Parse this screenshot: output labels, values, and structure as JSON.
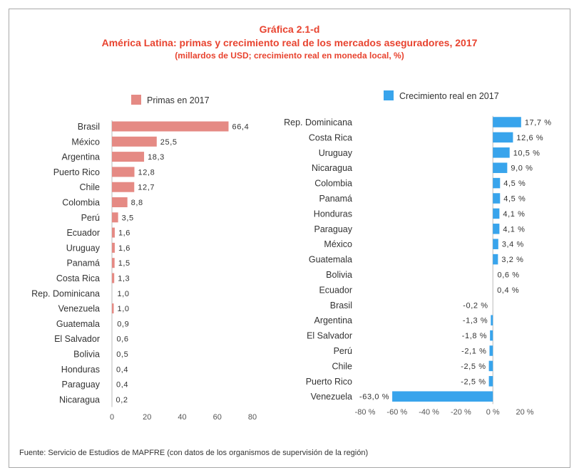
{
  "title": "Gráfica 2.1-d",
  "subtitle": "América Latina: primas y crecimiento real de los mercados aseguradores, 2017",
  "subtitle2": "(millardos de USD; crecimiento real en moneda local, %)",
  "source": "Fuente: Servicio de Estudios de MAPFRE (con datos de los organismos de supervisión de la región)",
  "colors": {
    "primas": "#e58a84",
    "crecimiento": "#38a4ec",
    "text": "#333333",
    "title": "#e8432f"
  },
  "chart_data": [
    {
      "type": "bar",
      "orientation": "horizontal",
      "series": [
        {
          "name": "Primas en 2017"
        }
      ],
      "categories": [
        "Brasil",
        "México",
        "Argentina",
        "Puerto Rico",
        "Chile",
        "Colombia",
        "Perú",
        "Ecuador",
        "Uruguay",
        "Panamá",
        "Costa Rica",
        "Rep. Dominicana",
        "Venezuela",
        "Guatemala",
        "El Salvador",
        "Bolivia",
        "Honduras",
        "Paraguay",
        "Nicaragua"
      ],
      "values": [
        66.4,
        25.5,
        18.3,
        12.8,
        12.7,
        8.8,
        3.5,
        1.6,
        1.6,
        1.5,
        1.3,
        1.0,
        1.0,
        0.9,
        0.6,
        0.5,
        0.4,
        0.4,
        0.2
      ],
      "labels": [
        "66,4",
        "25,5",
        "18,3",
        "12,8",
        "12,7",
        "8,8",
        "3,5",
        "1,6",
        "1,6",
        "1,5",
        "1,3",
        "1,0",
        "1,0",
        "0,9",
        "0,6",
        "0,5",
        "0,4",
        "0,4",
        "0,2"
      ],
      "visible_bar": [
        true,
        true,
        true,
        true,
        true,
        true,
        true,
        true,
        true,
        true,
        true,
        false,
        true,
        false,
        false,
        false,
        false,
        false,
        false
      ],
      "xlim": [
        0,
        80
      ],
      "xticks": [
        0,
        20,
        40,
        60,
        80
      ],
      "xtick_labels": [
        "0",
        "20",
        "40",
        "60",
        "80"
      ],
      "legend_position": "top"
    },
    {
      "type": "bar",
      "orientation": "horizontal",
      "series": [
        {
          "name": "Crecimiento real en 2017"
        }
      ],
      "categories": [
        "Rep. Dominicana",
        "Costa Rica",
        "Uruguay",
        "Nicaragua",
        "Colombia",
        "Panamá",
        "Honduras",
        "Paraguay",
        "México",
        "Guatemala",
        "Bolivia",
        "Ecuador",
        "Brasil",
        "Argentina",
        "El Salvador",
        "Perú",
        "Chile",
        "Puerto Rico",
        "Venezuela"
      ],
      "values": [
        17.7,
        12.6,
        10.5,
        9.0,
        4.5,
        4.5,
        4.1,
        4.1,
        3.4,
        3.2,
        0.6,
        0.4,
        -0.2,
        -1.3,
        -1.8,
        -2.1,
        -2.5,
        -2.5,
        -63.0
      ],
      "labels": [
        "17,7 %",
        "12,6 %",
        "10,5 %",
        "9,0 %",
        "4,5 %",
        "4,5 %",
        "4,1 %",
        "4,1 %",
        "3,4 %",
        "3,2 %",
        "0,6 %",
        "0,4 %",
        "-0,2 %",
        "-1,3 %",
        "-1,8 %",
        "-2,1 %",
        "-2,5 %",
        "-2,5 %",
        "-63,0 %"
      ],
      "visible_bar": [
        true,
        true,
        true,
        true,
        true,
        true,
        true,
        true,
        true,
        true,
        false,
        false,
        false,
        true,
        true,
        true,
        true,
        true,
        true
      ],
      "xlim": [
        -80,
        20
      ],
      "xticks": [
        -80,
        -60,
        -40,
        -20,
        0,
        20
      ],
      "xtick_labels": [
        "-80 %",
        "-60 %",
        "-40 %",
        "-20 %",
        "0 %",
        "20 %"
      ],
      "legend_position": "top"
    }
  ]
}
